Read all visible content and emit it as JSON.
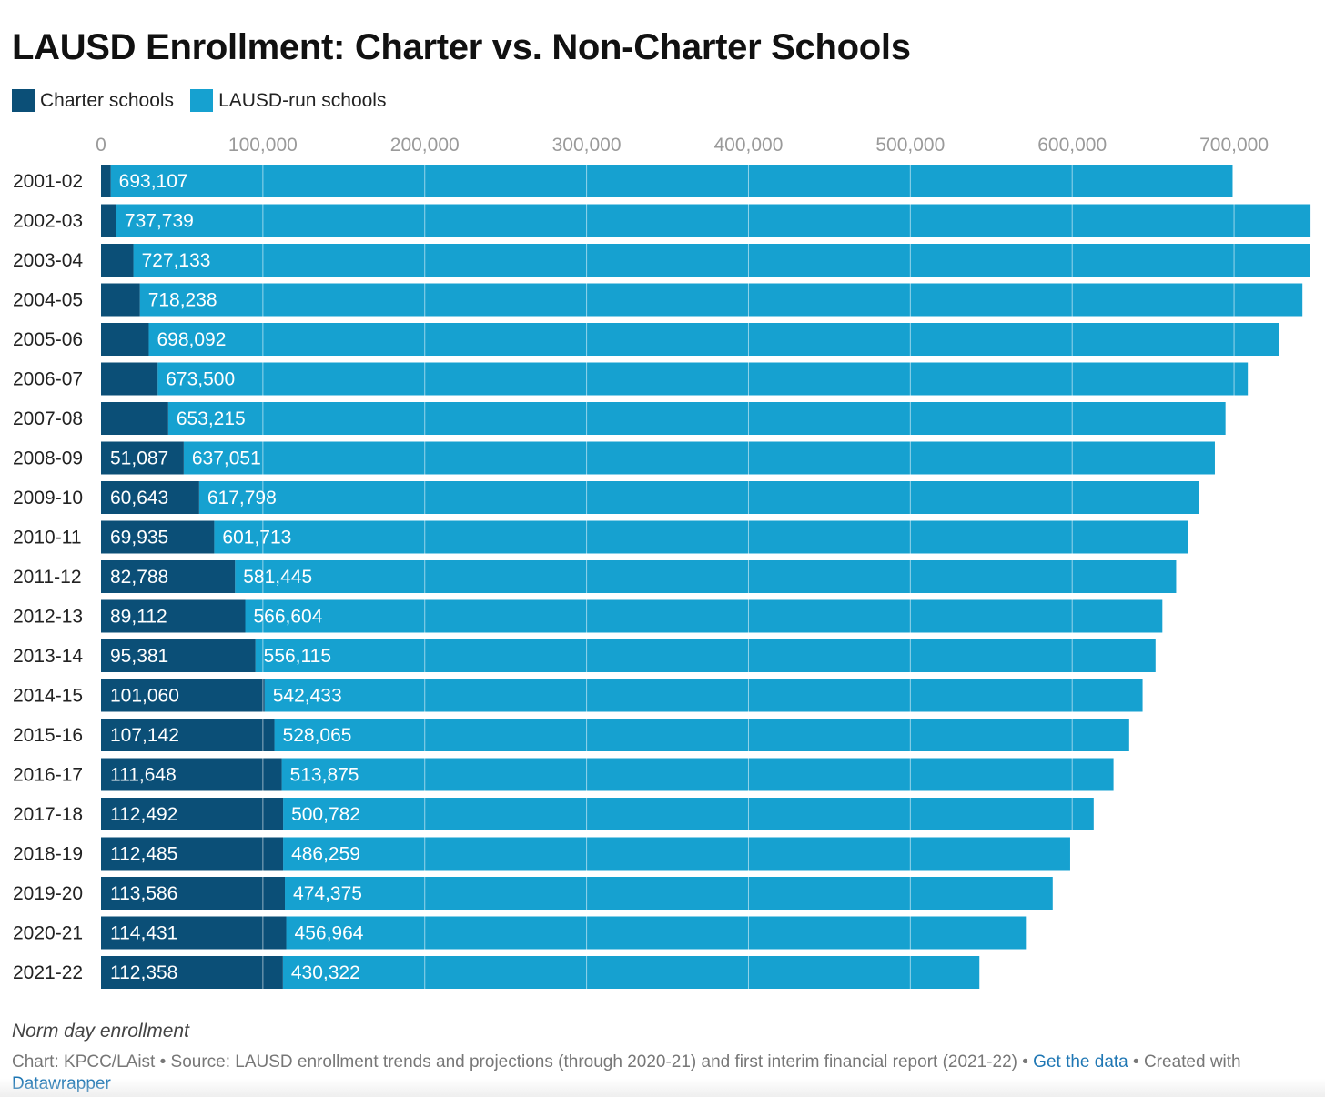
{
  "title": "LAUSD Enrollment: Charter vs. Non-Charter Schools",
  "legend": [
    {
      "label": "Charter schools",
      "color": "#0b4f77"
    },
    {
      "label": "LAUSD-run schools",
      "color": "#16a1d0"
    }
  ],
  "chart_data": {
    "type": "bar",
    "orientation": "horizontal",
    "stacked": true,
    "title": "LAUSD Enrollment: Charter vs. Non-Charter Schools",
    "categories": [
      "2001-02",
      "2002-03",
      "2003-04",
      "2004-05",
      "2005-06",
      "2006-07",
      "2007-08",
      "2008-09",
      "2009-10",
      "2010-11",
      "2011-12",
      "2012-13",
      "2013-14",
      "2014-15",
      "2015-16",
      "2016-17",
      "2017-18",
      "2018-19",
      "2019-20",
      "2020-21",
      "2021-22"
    ],
    "series": [
      {
        "name": "Charter schools",
        "color": "#0b4f77",
        "values": [
          6000,
          9500,
          20000,
          24000,
          29500,
          35000,
          41500,
          51087,
          60643,
          69935,
          82788,
          89112,
          95381,
          101060,
          107142,
          111648,
          112492,
          112485,
          113586,
          114431,
          112358
        ],
        "labels": [
          "",
          "",
          "",
          "",
          "",
          "",
          "",
          "51,087",
          "60,643",
          "69,935",
          "82,788",
          "89,112",
          "95,381",
          "101,060",
          "107,142",
          "111,648",
          "112,492",
          "112,485",
          "113,586",
          "114,431",
          "112,358"
        ]
      },
      {
        "name": "LAUSD-run schools",
        "color": "#16a1d0",
        "values": [
          693107,
          737739,
          727133,
          718238,
          698092,
          673500,
          653215,
          637051,
          617798,
          601713,
          581445,
          566604,
          556115,
          542433,
          528065,
          513875,
          500782,
          486259,
          474375,
          456964,
          430322
        ],
        "labels": [
          "693,107",
          "737,739",
          "727,133",
          "718,238",
          "698,092",
          "673,500",
          "653,215",
          "637,051",
          "617,798",
          "601,713",
          "581,445",
          "566,604",
          "556,115",
          "542,433",
          "528,065",
          "513,875",
          "500,782",
          "486,259",
          "474,375",
          "456,964",
          "430,322"
        ]
      }
    ],
    "xticks": [
      0,
      100000,
      200000,
      300000,
      400000,
      500000,
      600000,
      700000
    ],
    "xtick_labels": [
      "0",
      "100,000",
      "200,000",
      "300,000",
      "400,000",
      "500,000",
      "600,000",
      "700,000"
    ],
    "xlim": [
      0,
      750000
    ],
    "grid": true,
    "legend_position": "top-left"
  },
  "notes": "Norm day enrollment",
  "footer": {
    "source": "Chart: KPCC/LAist • Source: LAUSD enrollment trends and projections (through 2020-21) and first interim financial report (2021-22) •",
    "get_data": "Get the data",
    "created_with": "• Created with",
    "datawrapper": "Datawrapper"
  }
}
